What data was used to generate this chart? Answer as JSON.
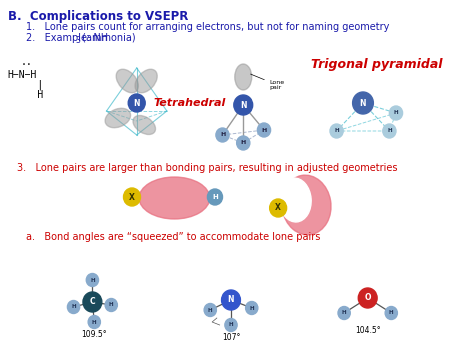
{
  "title_text": "B.  Complications to VSEPR",
  "point1": "1.   Lone pairs count for arranging electrons, but not for naming geometry",
  "point2_prefix": "2.   Example: NH",
  "point2_sub": "3",
  "point2_suffix": " (ammonia)",
  "point3": "3.   Lone pairs are larger than bonding pairs, resulting in adjusted geometries",
  "point_a": "a.   Bond angles are “squeezed” to accommodate lone pairs",
  "tetrahedral_label": "Tetrahedral",
  "trigonal_label": "Trigonal pyramidal",
  "lewis_dots": "··",
  "lewis_line1": "H−N−H",
  "lewis_line2": "     |",
  "lewis_line3": "     H",
  "lone_pair_label": "Lone\npair",
  "angle1": "109.5°",
  "angle2": "107°",
  "angle3": "104.5°",
  "bg_color": "#ffffff",
  "title_color": "#1a1aaa",
  "red_color": "#cc0000",
  "text_color": "#000000",
  "blue_dark": "#1a3a8a",
  "blue_mid": "#3355bb",
  "blue_light": "#6699cc",
  "atom_h_color": "#88aacc",
  "atom_n_color": "#3355aa",
  "atom_c_color": "#1a4a5a",
  "atom_o_color": "#cc2222",
  "orbital_gray": "#999999",
  "pink_blob": "#e87080",
  "yellow_atom": "#ddbb00",
  "cyan_line": "#44bbcc"
}
